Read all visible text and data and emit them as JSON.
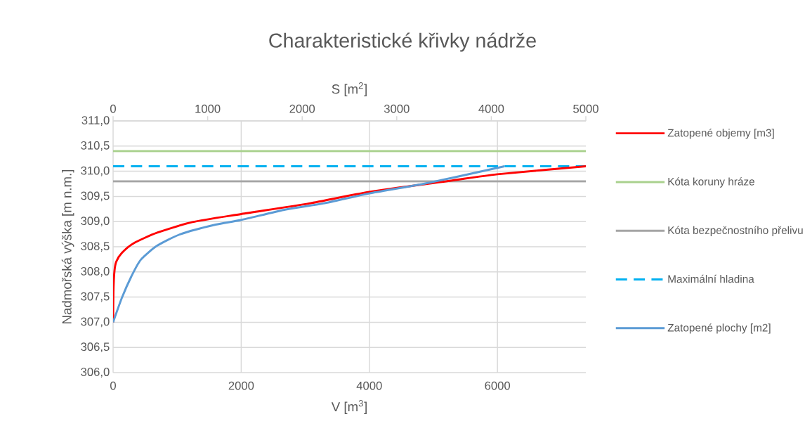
{
  "chart_data": {
    "type": "line",
    "title": "Charakteristické křivky nádrže",
    "xlabel": "V [m$^{3}$]",
    "x2label": "S [m$^{2}$]",
    "ylabel": "Nadmořská výška [m n.m.]",
    "xlim": [
      0,
      7380
    ],
    "xticks": [
      0,
      2000,
      4000,
      6000
    ],
    "x2lim": [
      0,
      5000
    ],
    "x2ticks": [
      0,
      1000,
      2000,
      3000,
      4000,
      5000
    ],
    "ylim": [
      306,
      311
    ],
    "yticks": [
      {
        "value": 306,
        "label": "306,0"
      },
      {
        "value": 306.5,
        "label": "306,5"
      },
      {
        "value": 307,
        "label": "307,0"
      },
      {
        "value": 307.5,
        "label": "307,5"
      },
      {
        "value": 308,
        "label": "308,0"
      },
      {
        "value": 308.5,
        "label": "308,5"
      },
      {
        "value": 309,
        "label": "309,0"
      },
      {
        "value": 309.5,
        "label": "309,5"
      },
      {
        "value": 310,
        "label": "310,0"
      },
      {
        "value": 310.5,
        "label": "310,5"
      },
      {
        "value": 311,
        "label": "311,0"
      }
    ],
    "series": [
      {
        "name": "Zatopené objemy [m3]",
        "color": "#ff0000",
        "x": [
          0,
          5,
          20,
          48,
          139,
          322,
          689,
          1238,
          2000,
          3061,
          4000,
          5253,
          6000,
          7380
        ],
        "values": [
          307.0,
          307.6,
          308.0,
          308.2,
          308.38,
          308.57,
          308.78,
          308.99,
          309.15,
          309.36,
          309.59,
          309.81,
          309.94,
          310.1
        ]
      },
      {
        "name": "Zatopené plochy [m2]",
        "color": "#5b9bd5",
        "axis": "x2",
        "x": [
          0,
          94,
          193,
          292,
          465,
          713,
          1084,
          1351,
          1827,
          2223,
          2710,
          3311,
          4140
        ],
        "values": [
          307.0,
          307.49,
          307.91,
          308.24,
          308.52,
          308.75,
          308.94,
          309.03,
          309.24,
          309.36,
          309.56,
          309.76,
          310.1
        ]
      }
    ],
    "ref_lines": [
      {
        "axis": "y",
        "value": 310.4,
        "label": "Kóta koruny hráze",
        "color": "#a9d18e",
        "line_style": "solid"
      },
      {
        "axis": "y",
        "value": 309.8,
        "label": "Kóta bezpečnostního přelivu",
        "color": "#a5a5a5",
        "line_style": "solid"
      },
      {
        "axis": "y",
        "value": 310.1,
        "label": "Maximální hladina",
        "color": "#00b0f0",
        "line_style": "dashed"
      }
    ],
    "grid": true,
    "legend": "right",
    "line_style": "solid"
  }
}
